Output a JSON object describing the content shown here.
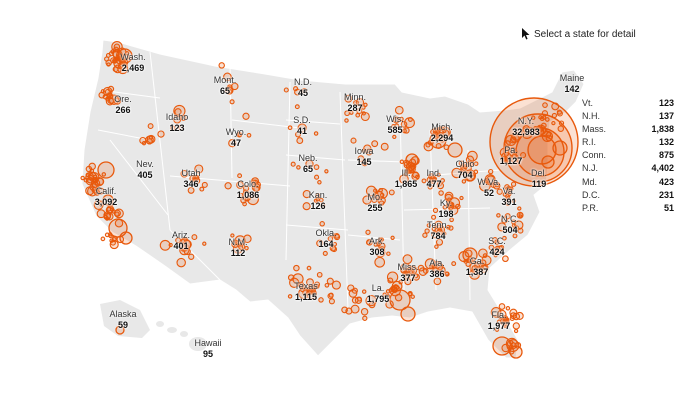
{
  "hint": {
    "text": "Select a state for detail",
    "icon": "cursor-icon"
  },
  "colors": {
    "land": "#e8e8e8",
    "border": "#ffffff",
    "bubble": "#e8590c",
    "bubble_fill": "rgba(232,89,12,0.18)"
  },
  "states": [
    {
      "id": "wa",
      "name": "Wash.",
      "count": "2,469"
    },
    {
      "id": "or",
      "name": "Ore.",
      "count": "266"
    },
    {
      "id": "ca",
      "name": "Calif.",
      "count": "3,092"
    },
    {
      "id": "nv",
      "name": "Nev.",
      "count": "405"
    },
    {
      "id": "id",
      "name": "Idaho",
      "count": "123"
    },
    {
      "id": "mt",
      "name": "Mont.",
      "count": "65"
    },
    {
      "id": "wy",
      "name": "Wyo.",
      "count": "47"
    },
    {
      "id": "ut",
      "name": "Utah",
      "count": "346"
    },
    {
      "id": "az",
      "name": "Ariz.",
      "count": "401"
    },
    {
      "id": "co",
      "name": "Colo.",
      "count": "1,086"
    },
    {
      "id": "nm",
      "name": "N.M.",
      "count": "112"
    },
    {
      "id": "nd",
      "name": "N.D.",
      "count": "45"
    },
    {
      "id": "sd",
      "name": "S.D.",
      "count": "41"
    },
    {
      "id": "ne",
      "name": "Neb.",
      "count": "65"
    },
    {
      "id": "ks",
      "name": "Kan.",
      "count": "126"
    },
    {
      "id": "ok",
      "name": "Okla.",
      "count": "164"
    },
    {
      "id": "tx",
      "name": "Texas",
      "count": "1,115"
    },
    {
      "id": "mn",
      "name": "Minn.",
      "count": "287"
    },
    {
      "id": "ia",
      "name": "Iowa",
      "count": "145"
    },
    {
      "id": "mo",
      "name": "Mo.",
      "count": "255"
    },
    {
      "id": "ar",
      "name": "Ark.",
      "count": "308"
    },
    {
      "id": "la",
      "name": "La.",
      "count": "1,795"
    },
    {
      "id": "wi",
      "name": "Wis.",
      "count": "585"
    },
    {
      "id": "il",
      "name": "Ill.",
      "count": "1,865"
    },
    {
      "id": "ms",
      "name": "Miss.",
      "count": "377"
    },
    {
      "id": "mi",
      "name": "Mich.",
      "count": "2,294"
    },
    {
      "id": "in",
      "name": "Ind.",
      "count": "477"
    },
    {
      "id": "oh",
      "name": "Ohio",
      "count": "704"
    },
    {
      "id": "ky",
      "name": "Ky.",
      "count": "198"
    },
    {
      "id": "tn",
      "name": "Tenn.",
      "count": "784"
    },
    {
      "id": "al",
      "name": "Ala.",
      "count": "386"
    },
    {
      "id": "ga",
      "name": "Ga.",
      "count": "1,387"
    },
    {
      "id": "fl",
      "name": "Fla.",
      "count": "1,977"
    },
    {
      "id": "sc",
      "name": "S.C.",
      "count": "424"
    },
    {
      "id": "nc",
      "name": "N.C.",
      "count": "504"
    },
    {
      "id": "va",
      "name": "Va.",
      "count": "391"
    },
    {
      "id": "wv",
      "name": "W.Va.",
      "count": "52"
    },
    {
      "id": "pa",
      "name": "Pa.",
      "count": "1,127"
    },
    {
      "id": "ny",
      "name": "N.Y.",
      "count": "32,983"
    },
    {
      "id": "de",
      "name": "Del.",
      "count": "119"
    },
    {
      "id": "me",
      "name": "Maine",
      "count": "142"
    },
    {
      "id": "ak",
      "name": "Alaska",
      "count": "59"
    },
    {
      "id": "hi",
      "name": "Hawaii",
      "count": "95"
    }
  ],
  "northeast_list": [
    {
      "name": "Vt.",
      "count": "123"
    },
    {
      "name": "N.H.",
      "count": "137"
    },
    {
      "name": "Mass.",
      "count": "1,838"
    },
    {
      "name": "R.I.",
      "count": "132"
    },
    {
      "name": "Conn.",
      "count": "875"
    },
    {
      "name": "N.J.",
      "count": "4,402"
    },
    {
      "name": "Md.",
      "count": "423"
    },
    {
      "name": "D.C.",
      "count": "231"
    },
    {
      "name": "P.R.",
      "count": "51"
    }
  ]
}
